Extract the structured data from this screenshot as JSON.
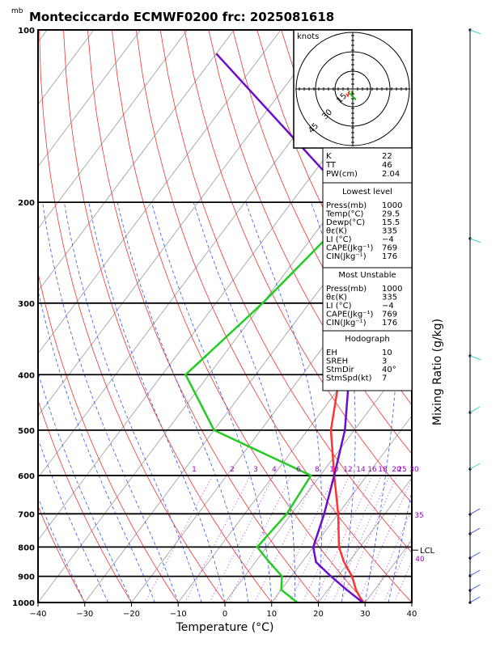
{
  "chart_data": {
    "type": "line",
    "title": "Monteciccardo ECMWF0200  frc: 2025081618",
    "pressure_unit_label": "mb",
    "xlabel": "Temperature (°C)",
    "ylabel_right": "Mixing Ratio (g/kg)",
    "xlim": [
      -40,
      40
    ],
    "ylim": [
      1000,
      100
    ],
    "x_ticks": [
      "−40",
      "−30",
      "−20",
      "−10",
      "0",
      "10",
      "20",
      "30",
      "40"
    ],
    "pressure_levels": [
      "100",
      "200",
      "300",
      "400",
      "500",
      "600",
      "700",
      "800",
      "900",
      "1000"
    ],
    "mixing_ratio_labels": [
      "1",
      "2",
      "3",
      "4",
      "6",
      "8",
      "10",
      "12",
      "14",
      "16",
      "18",
      "20",
      "25",
      "30",
      "35",
      "40"
    ],
    "series": [
      {
        "name": "Temperature",
        "color": "#ff3333",
        "points": [
          [
            29.5,
            1000
          ],
          [
            26,
            950
          ],
          [
            23,
            900
          ],
          [
            19,
            850
          ],
          [
            15.5,
            800
          ],
          [
            10,
            700
          ],
          [
            3,
            600
          ],
          [
            -5,
            500
          ],
          [
            -12,
            400
          ],
          [
            -22,
            300
          ],
          [
            -37,
            200
          ],
          [
            -56,
            100
          ]
        ]
      },
      {
        "name": "Dewpoint",
        "color": "#22cc22",
        "points": [
          [
            15.5,
            1000
          ],
          [
            10,
            950
          ],
          [
            8,
            900
          ],
          [
            3,
            850
          ],
          [
            -2,
            800
          ],
          [
            -1,
            700
          ],
          [
            -2,
            600
          ],
          [
            -30,
            500
          ],
          [
            -45,
            400
          ],
          [
            -40,
            300
          ],
          [
            -35,
            200
          ],
          [
            -22,
            100
          ]
        ]
      },
      {
        "name": "Parcel",
        "color": "#6a0dcc",
        "points": [
          [
            29.5,
            1000
          ],
          [
            24,
            950
          ],
          [
            18.5,
            900
          ],
          [
            13,
            850
          ],
          [
            10,
            800
          ],
          [
            7,
            700
          ],
          [
            3,
            600
          ],
          [
            -2,
            500
          ],
          [
            -10,
            400
          ],
          [
            -20,
            300
          ],
          [
            -37,
            200
          ],
          [
            -90,
            110
          ]
        ]
      }
    ],
    "lcl_label": "LCL",
    "lcl_pressure": 810,
    "hodograph": {
      "unit_label": "knots",
      "ring_labels": [
        "15",
        "30",
        "45"
      ]
    },
    "indices": {
      "K": "22",
      "TT": "46",
      "PW(cm)": "2.04"
    },
    "lowest_level": {
      "header": "Lowest level",
      "rows": [
        [
          "Press(mb)",
          "1000"
        ],
        [
          "Temp(°C)",
          "29.5"
        ],
        [
          "Dewp(°C)",
          "15.5"
        ],
        [
          "θε(K)",
          "335"
        ],
        [
          "LI (°C)",
          "−4"
        ],
        [
          "CAPE(Jkg⁻¹)",
          "769"
        ],
        [
          "CIN(Jkg⁻¹)",
          "176"
        ]
      ]
    },
    "most_unstable": {
      "header": "Most Unstable",
      "rows": [
        [
          "Press(mb)",
          "1000"
        ],
        [
          "θε(K)",
          "335"
        ],
        [
          "LI (°C)",
          "−4"
        ],
        [
          "CAPE(Jkg⁻¹)",
          "769"
        ],
        [
          "CIN(Jkg⁻¹)",
          "176"
        ]
      ]
    },
    "hodograph_stats": {
      "header": "Hodograph",
      "rows": [
        [
          "EH",
          "10"
        ],
        [
          "SREH",
          "3"
        ],
        [
          "StmDir",
          "40°"
        ],
        [
          "StmSpd(kt)",
          "7"
        ]
      ]
    }
  }
}
